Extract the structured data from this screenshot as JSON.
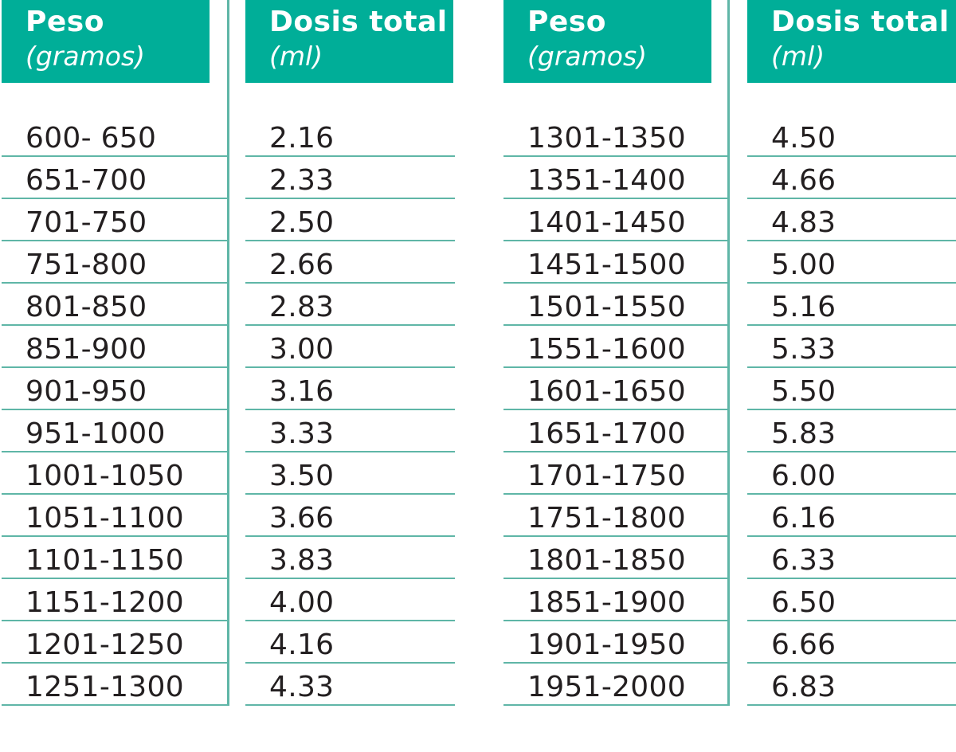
{
  "tables": [
    {
      "headers": {
        "peso": "Peso",
        "peso_unit": "(gramos)",
        "dosis": "Dosis total",
        "dosis_unit": "(ml)"
      },
      "rows": [
        {
          "peso": "600- 650",
          "dosis": "2.16"
        },
        {
          "peso": "651-700",
          "dosis": "2.33"
        },
        {
          "peso": "701-750",
          "dosis": "2.50"
        },
        {
          "peso": "751-800",
          "dosis": "2.66"
        },
        {
          "peso": "801-850",
          "dosis": "2.83"
        },
        {
          "peso": "851-900",
          "dosis": "3.00"
        },
        {
          "peso": "901-950",
          "dosis": "3.16"
        },
        {
          "peso": "951-1000",
          "dosis": "3.33"
        },
        {
          "peso": "1001-1050",
          "dosis": "3.50"
        },
        {
          "peso": "1051-1100",
          "dosis": "3.66"
        },
        {
          "peso": "1101-1150",
          "dosis": "3.83"
        },
        {
          "peso": "1151-1200",
          "dosis": "4.00"
        },
        {
          "peso": "1201-1250",
          "dosis": "4.16"
        },
        {
          "peso": "1251-1300",
          "dosis": "4.33"
        }
      ]
    },
    {
      "headers": {
        "peso": "Peso",
        "peso_unit": "(gramos)",
        "dosis": "Dosis total",
        "dosis_unit": "(ml)"
      },
      "rows": [
        {
          "peso": "1301-1350",
          "dosis": "4.50"
        },
        {
          "peso": "1351-1400",
          "dosis": "4.66"
        },
        {
          "peso": "1401-1450",
          "dosis": "4.83"
        },
        {
          "peso": "1451-1500",
          "dosis": "5.00"
        },
        {
          "peso": "1501-1550",
          "dosis": "5.16"
        },
        {
          "peso": "1551-1600",
          "dosis": "5.33"
        },
        {
          "peso": "1601-1650",
          "dosis": "5.50"
        },
        {
          "peso": "1651-1700",
          "dosis": "5.83"
        },
        {
          "peso": "1701-1750",
          "dosis": "6.00"
        },
        {
          "peso": "1751-1800",
          "dosis": "6.16"
        },
        {
          "peso": "1801-1850",
          "dosis": "6.33"
        },
        {
          "peso": "1851-1900",
          "dosis": "6.50"
        },
        {
          "peso": "1901-1950",
          "dosis": "6.66"
        },
        {
          "peso": "1951-2000",
          "dosis": "6.83"
        }
      ]
    }
  ],
  "colors": {
    "header_bg": "#00ae98",
    "rule": "#5fb6a7",
    "text": "#231f20"
  }
}
